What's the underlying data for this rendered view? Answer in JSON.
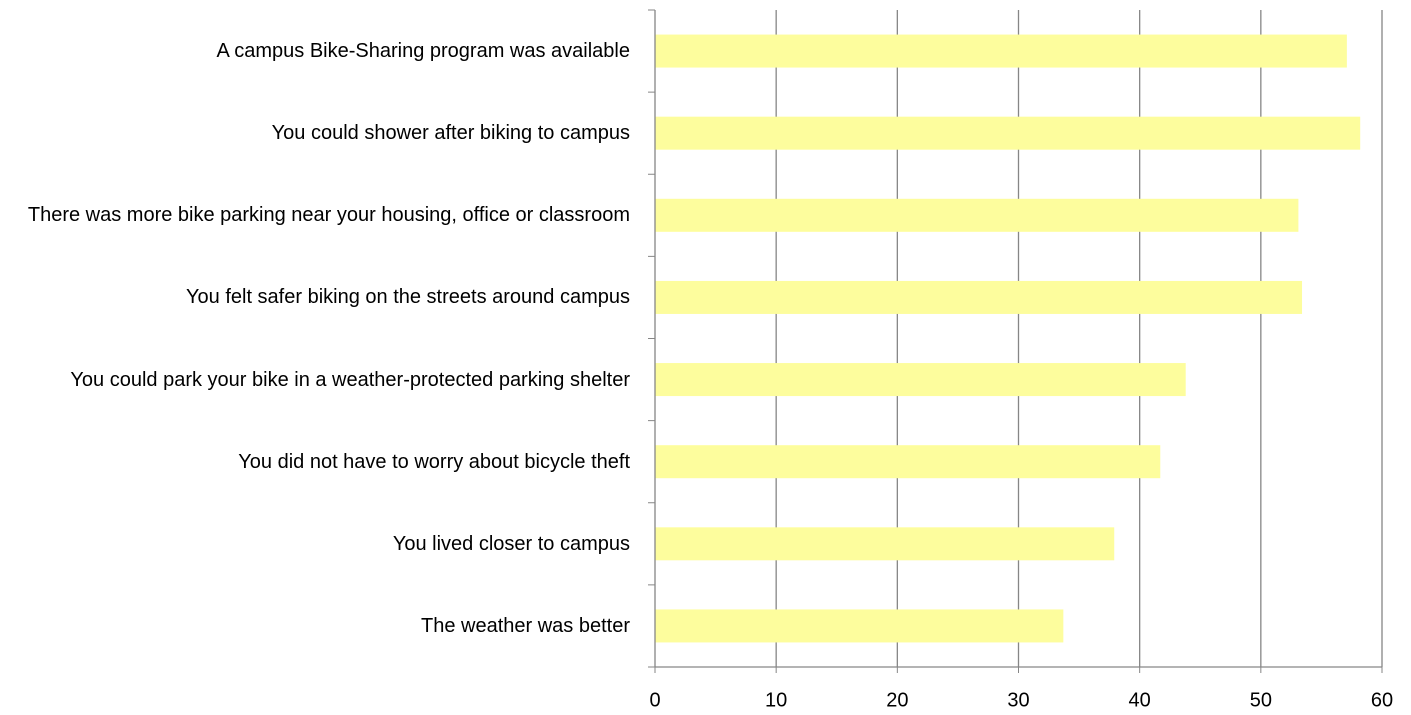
{
  "chart_data": {
    "type": "barh",
    "categories": [
      "A campus Bike-Sharing program was available",
      "You could shower after biking to campus",
      "There was more bike parking near your housing, office or classroom",
      "You felt safer biking on the streets around campus",
      "You could park your bike in a weather-protected parking shelter",
      "You did not have to worry about bicycle theft",
      "You lived closer to campus",
      "The weather was better"
    ],
    "values": [
      57.1,
      58.2,
      53.1,
      53.4,
      43.8,
      41.7,
      37.9,
      33.7
    ],
    "color": "#fdfd9d",
    "xlim": [
      0,
      60
    ],
    "xticks": [
      0,
      10,
      20,
      30,
      40,
      50,
      60
    ],
    "grid": true
  }
}
